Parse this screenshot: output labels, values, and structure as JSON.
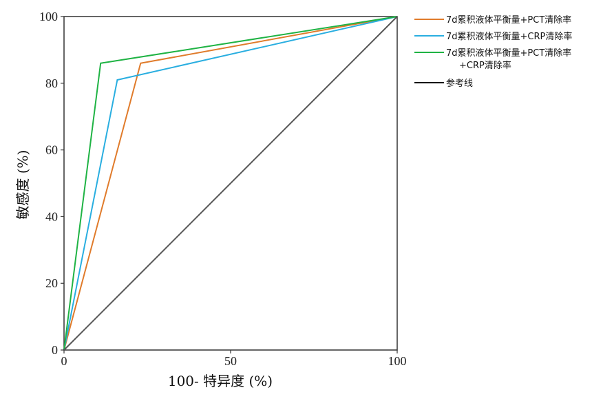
{
  "chart_data": {
    "type": "line",
    "title": "",
    "xlabel": "100- 特异度 (%)",
    "ylabel": "敏感度 (%)",
    "xlim": [
      0,
      100
    ],
    "ylim": [
      0,
      100
    ],
    "x_ticks": [
      0,
      50,
      100
    ],
    "x_tick_labels": [
      "0",
      "50",
      "100"
    ],
    "y_ticks": [
      0,
      20,
      40,
      60,
      80,
      100
    ],
    "y_tick_labels": [
      "0",
      "20",
      "40",
      "60",
      "80",
      "100"
    ],
    "grid": false,
    "legend_position": "right",
    "series": [
      {
        "name": "7d累积液体平衡量+PCT清除率",
        "name_lines": [
          "7d累积液体平衡量+PCT清除率"
        ],
        "color": "#e07b2b",
        "x": [
          0,
          23,
          100
        ],
        "y": [
          0,
          86,
          100
        ]
      },
      {
        "name": "7d累积液体平衡量+CRP清除率",
        "name_lines": [
          "7d累积液体平衡量+CRP清除率"
        ],
        "color": "#29aee0",
        "x": [
          0,
          16,
          100
        ],
        "y": [
          0,
          81,
          100
        ]
      },
      {
        "name": "7d累积液体平衡量+PCT清除率 +CRP清除率",
        "name_lines": [
          "7d累积液体平衡量+PCT清除率",
          "+CRP清除率"
        ],
        "color": "#1fb344",
        "x": [
          0,
          11,
          100
        ],
        "y": [
          0,
          86,
          100
        ]
      },
      {
        "name": "参考线",
        "name_lines": [
          "参考线"
        ],
        "color": "#555555",
        "legend_color": "#111111",
        "x": [
          0,
          100
        ],
        "y": [
          0,
          100
        ]
      }
    ]
  }
}
